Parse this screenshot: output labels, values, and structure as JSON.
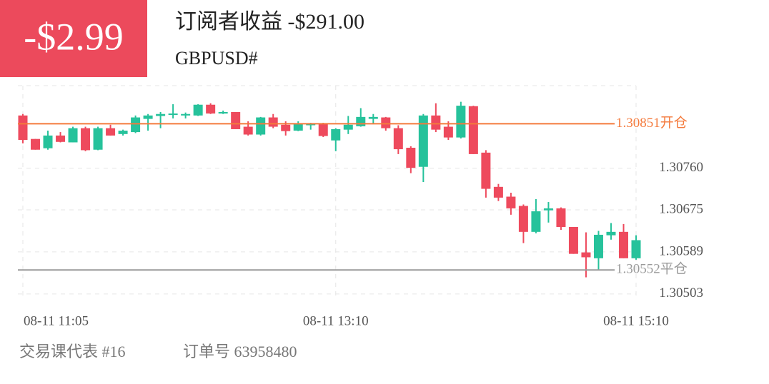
{
  "badge": "-$2.99",
  "title": "订阅者收益 -$291.00",
  "symbol": "GBPUSD#",
  "footer": [
    "交易课代表 #16",
    "订单号 63958480"
  ],
  "chart_data": {
    "type": "candlestick",
    "up_color": "#26c29b",
    "down_color": "#ee4a5d",
    "grid": true,
    "categories": [
      "08-11 11:05",
      null,
      null,
      null,
      null,
      null,
      null,
      null,
      null,
      null,
      null,
      null,
      null,
      null,
      null,
      null,
      null,
      null,
      null,
      null,
      null,
      null,
      null,
      null,
      null,
      "08-11 13:10",
      null,
      null,
      null,
      null,
      null,
      null,
      null,
      null,
      null,
      null,
      null,
      null,
      null,
      null,
      null,
      null,
      null,
      null,
      null,
      null,
      null,
      null,
      null,
      "08-11 15:10"
    ],
    "open": [
      1.30868,
      1.3082,
      1.30801,
      1.30827,
      1.30813,
      1.30842,
      1.30798,
      1.30842,
      1.3083,
      1.30834,
      1.30861,
      1.30867,
      1.30869,
      1.30868,
      1.30868,
      1.3089,
      1.30872,
      1.30875,
      1.30845,
      1.30829,
      1.30864,
      1.30849,
      1.30837,
      1.30848,
      1.30851,
      1.30817,
      1.30839,
      1.30846,
      1.30861,
      1.30864,
      1.30842,
      1.30802,
      1.30763,
      1.30868,
      1.30845,
      1.30823,
      1.30887,
      1.30792,
      1.30722,
      1.30702,
      1.30683,
      1.3063,
      1.30674,
      1.30678,
      1.3064,
      1.30588,
      1.30576,
      1.30623,
      1.3063,
      1.30576
    ],
    "high": [
      1.30871,
      1.3082,
      1.30837,
      1.30834,
      1.30845,
      1.30845,
      1.30845,
      1.30849,
      1.30839,
      1.30868,
      1.30871,
      1.30875,
      1.30891,
      1.30874,
      1.30891,
      1.30893,
      1.30878,
      1.30875,
      1.30856,
      1.30865,
      1.30871,
      1.30856,
      1.30856,
      1.30853,
      1.30853,
      1.30842,
      1.30867,
      1.30883,
      1.30871,
      1.30865,
      1.30848,
      1.30805,
      1.30871,
      1.30893,
      1.30856,
      1.30896,
      1.30888,
      1.30797,
      1.30728,
      1.3071,
      1.30686,
      1.30697,
      1.30691,
      1.3068,
      1.3064,
      1.30629,
      1.30632,
      1.30648,
      1.30646,
      1.30623
    ],
    "low": [
      1.30811,
      1.30798,
      1.30798,
      1.30813,
      1.30813,
      1.30795,
      1.30797,
      1.30827,
      1.30827,
      1.30832,
      1.30837,
      1.30842,
      1.30862,
      1.30862,
      1.30867,
      1.30871,
      1.30871,
      1.3084,
      1.30827,
      1.30827,
      1.30842,
      1.30827,
      1.30836,
      1.30839,
      1.30824,
      1.30795,
      1.3083,
      1.30845,
      1.30852,
      1.30837,
      1.30789,
      1.3075,
      1.30732,
      1.30834,
      1.30818,
      1.30821,
      1.30789,
      1.307,
      1.30693,
      1.30665,
      1.30607,
      1.30627,
      1.30649,
      1.30634,
      1.30585,
      1.30537,
      1.30551,
      1.30614,
      1.30576,
      1.30573
    ],
    "close": [
      1.30818,
      1.30798,
      1.30827,
      1.30814,
      1.30842,
      1.30797,
      1.30842,
      1.30827,
      1.30837,
      1.30864,
      1.30868,
      1.30871,
      1.30872,
      1.30871,
      1.3089,
      1.30872,
      1.30875,
      1.3084,
      1.30829,
      1.30864,
      1.30845,
      1.30836,
      1.30851,
      1.30851,
      1.30826,
      1.3084,
      1.30849,
      1.30865,
      1.30865,
      1.30842,
      1.30799,
      1.30761,
      1.30868,
      1.30839,
      1.30823,
      1.30888,
      1.30789,
      1.30718,
      1.307,
      1.30678,
      1.3063,
      1.30672,
      1.30678,
      1.3064,
      1.30585,
      1.30578,
      1.30624,
      1.3063,
      1.30576,
      1.30613
    ],
    "ylim": [
      1.30494,
      1.30929
    ],
    "yticks": [
      1.30503,
      1.30589,
      1.30675,
      {
        "value": 1.3076,
        "label": "1.30760"
      }
    ],
    "annotations": [
      {
        "value": 1.30851,
        "label": "1.30851开仓",
        "color": "#f47a3c"
      },
      {
        "value": 1.30552,
        "label": "1.30552平仓",
        "color": "#9a9a9a"
      }
    ]
  }
}
